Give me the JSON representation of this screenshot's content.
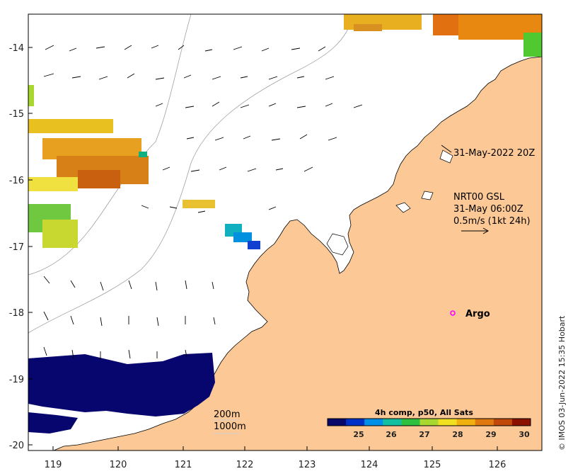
{
  "map": {
    "lon_ticks": [
      "119",
      "120",
      "121",
      "122",
      "123",
      "124",
      "125",
      "126"
    ],
    "lat_ticks": [
      "-14",
      "-15",
      "-16",
      "-17",
      "-18",
      "-19",
      "-20"
    ],
    "swath_time": "31-May-2022 20Z",
    "current_product": "NRT00 GSL",
    "current_time": "31-May 06:00Z",
    "current_scale": "0.5m/s (1kt 24h)",
    "argo_label": "Argo",
    "isobath_200": "200m",
    "isobath_1000": "1000m",
    "colorbar": {
      "title": "4h comp, p50, All Sats",
      "ticks": [
        "25",
        "26",
        "27",
        "28",
        "29",
        "30"
      ],
      "colors": [
        "#08086b",
        "#0030c8",
        "#0090e8",
        "#10c0a0",
        "#30c040",
        "#a8d830",
        "#f0e020",
        "#f0b010",
        "#e07810",
        "#c04808",
        "#8c1000"
      ]
    },
    "credit": "© IMOS 03-Jun-2022 15:35 Hobart",
    "colors": {
      "land": "#fbc896",
      "coast": "#000000",
      "isobath": "#a0a0a0",
      "argo": "#ff00ff",
      "sst_dark": "#06066e"
    }
  }
}
